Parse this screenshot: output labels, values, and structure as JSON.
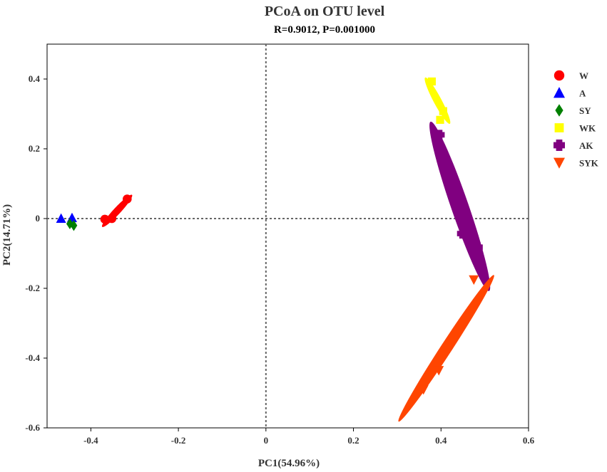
{
  "chart_data": {
    "type": "scatter",
    "title": "PCoA on OTU level",
    "subtitle": "R=0.9012, P=0.001000",
    "xlabel": "PC1(54.96%)",
    "ylabel": "PC2(14.71%)",
    "xlim": [
      -0.5,
      0.6
    ],
    "ylim": [
      -0.6,
      0.5
    ],
    "xticks": [
      -0.4,
      -0.2,
      0,
      0.2,
      0.4,
      0.6
    ],
    "xtick_labels": [
      "-0.4",
      "-0.2",
      "0",
      "0.2",
      "0.4",
      "0.6"
    ],
    "yticks": [
      -0.6,
      -0.4,
      -0.2,
      0,
      0.2,
      0.4
    ],
    "ytick_labels": [
      "-0.6",
      "-0.4",
      "-0.2",
      "0",
      "0.2",
      "0.4"
    ],
    "reference_lines": {
      "x": 0,
      "y": 0
    },
    "grid": false,
    "legend_position": "right",
    "series": [
      {
        "name": "W",
        "color": "#ff0000",
        "marker": "circle",
        "points": [
          [
            -0.317,
            0.056
          ],
          [
            -0.352,
            0.0
          ],
          [
            -0.368,
            -0.002
          ]
        ],
        "ellipse": {
          "cx": -0.34,
          "cy": 0.022,
          "rx": 0.05,
          "ry": 0.008,
          "angle_deg": 47
        }
      },
      {
        "name": "A",
        "color": "#0000ff",
        "marker": "triangle-up",
        "points": [
          [
            -0.468,
            0.0
          ],
          [
            -0.443,
            0.002
          ]
        ]
      },
      {
        "name": "SY",
        "color": "#008000",
        "marker": "diamond",
        "points": [
          [
            -0.448,
            -0.015
          ],
          [
            -0.439,
            -0.02
          ]
        ]
      },
      {
        "name": "WK",
        "color": "#ffff00",
        "marker": "square",
        "points": [
          [
            0.379,
            0.393
          ],
          [
            0.405,
            0.308
          ],
          [
            0.398,
            0.283
          ]
        ],
        "ellipse": {
          "cx": 0.392,
          "cy": 0.338,
          "rx": 0.06,
          "ry": 0.009,
          "angle_deg": -62
        }
      },
      {
        "name": "AK",
        "color": "#800080",
        "marker": "plus",
        "points": [
          [
            0.397,
            0.24
          ],
          [
            0.448,
            -0.043
          ],
          [
            0.484,
            -0.082
          ]
        ],
        "ellipse": {
          "cx": 0.443,
          "cy": 0.035,
          "rx": 0.205,
          "ry": 0.02,
          "angle_deg": -71
        }
      },
      {
        "name": "SYK",
        "color": "#ff4500",
        "marker": "triangle-down",
        "points": [
          [
            0.475,
            -0.175
          ],
          [
            0.395,
            -0.435
          ],
          [
            0.36,
            -0.49
          ]
        ],
        "ellipse": {
          "cx": 0.412,
          "cy": -0.372,
          "rx": 0.2,
          "ry": 0.013,
          "angle_deg": 57
        }
      }
    ]
  }
}
